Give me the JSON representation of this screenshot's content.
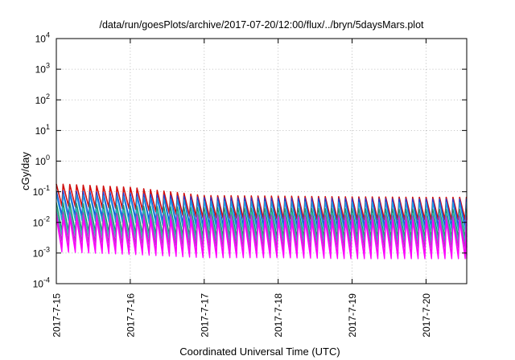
{
  "chart_data": {
    "type": "line",
    "title": "/data/run/goesPlots/archive/2017-07-20/12:00/flux/../bryn/5daysMars.plot",
    "xlabel": "Coordinated Universal Time (UTC)",
    "ylabel": "cGy/day",
    "yscale": "log",
    "ylim": [
      0.0001,
      10000
    ],
    "xlim": [
      0,
      5.55
    ],
    "x_unit": "days after 2017-7-15 00:00 UTC",
    "grid": true,
    "yticks": [
      {
        "base": "10",
        "exp": "-4",
        "value": 0.0001
      },
      {
        "base": "10",
        "exp": "-3",
        "value": 0.001
      },
      {
        "base": "10",
        "exp": "-2",
        "value": 0.01
      },
      {
        "base": "10",
        "exp": "-1",
        "value": 0.1
      },
      {
        "base": "10",
        "exp": "0",
        "value": 1
      },
      {
        "base": "10",
        "exp": "1",
        "value": 10
      },
      {
        "base": "10",
        "exp": "2",
        "value": 100
      },
      {
        "base": "10",
        "exp": "3",
        "value": 1000
      },
      {
        "base": "10",
        "exp": "4",
        "value": 10000
      }
    ],
    "xticks": [
      {
        "label": "2017-7-15",
        "value": 0
      },
      {
        "label": "2017-7-16",
        "value": 1
      },
      {
        "label": "2017-7-17",
        "value": 2
      },
      {
        "label": "2017-7-18",
        "value": 3
      },
      {
        "label": "2017-7-19",
        "value": 4
      },
      {
        "label": "2017-7-20",
        "value": 5
      }
    ],
    "sawtooth": {
      "cycles_per_day": 11,
      "day_start": [
        0,
        1,
        2,
        3,
        4,
        5
      ],
      "drop_fraction_of_cycle": 0.18
    },
    "series": [
      {
        "color": "#d01010",
        "peak": [
          0.18,
          0.14,
          0.075,
          0.072,
          0.068,
          0.066
        ],
        "trough": [
          0.035,
          0.028,
          0.014,
          0.013,
          0.012,
          0.012
        ]
      },
      {
        "color": "#2040d8",
        "peak": [
          0.11,
          0.09,
          0.065,
          0.062,
          0.06,
          0.058
        ],
        "trough": [
          0.018,
          0.014,
          0.008,
          0.008,
          0.0075,
          0.0075
        ]
      },
      {
        "color": "#1ca0e0",
        "peak": [
          0.085,
          0.07,
          0.05,
          0.048,
          0.046,
          0.045
        ],
        "trough": [
          0.012,
          0.01,
          0.006,
          0.0058,
          0.0055,
          0.0055
        ]
      },
      {
        "color": "#209060",
        "peak": [
          0.045,
          0.035,
          0.03,
          0.029,
          0.028,
          0.027
        ],
        "trough": [
          0.0055,
          0.0045,
          0.0035,
          0.0034,
          0.0033,
          0.0033
        ]
      },
      {
        "color": "#30c0b0",
        "peak": [
          0.03,
          0.025,
          0.022,
          0.021,
          0.02,
          0.02
        ],
        "trough": [
          0.004,
          0.0032,
          0.0025,
          0.0024,
          0.0023,
          0.0023
        ]
      },
      {
        "color": "#a040c0",
        "peak": [
          0.022,
          0.019,
          0.018,
          0.017,
          0.017,
          0.016
        ],
        "trough": [
          0.0025,
          0.002,
          0.0016,
          0.0015,
          0.0015,
          0.0015
        ]
      },
      {
        "color": "#e020e0",
        "peak": [
          0.018,
          0.016,
          0.015,
          0.015,
          0.014,
          0.014
        ],
        "trough": [
          0.0015,
          0.0012,
          0.0009,
          0.0009,
          0.00085,
          0.00085
        ]
      },
      {
        "color": "#ff00ff",
        "peak": [
          0.014,
          0.012,
          0.012,
          0.011,
          0.011,
          0.011
        ],
        "trough": [
          0.0011,
          0.0009,
          0.0007,
          0.0007,
          0.00065,
          0.00065
        ]
      }
    ]
  }
}
